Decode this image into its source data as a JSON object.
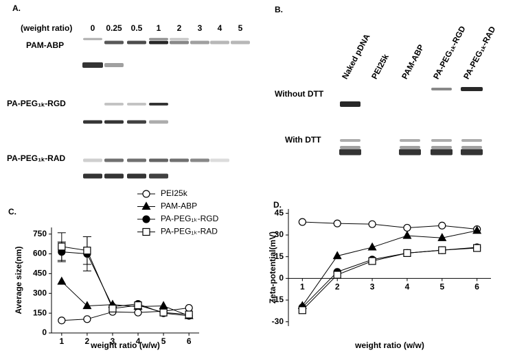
{
  "panels": {
    "A": {
      "label": "A.",
      "ratio_title": "(weight ratio)",
      "ratios": [
        "0",
        "0.25",
        "0.5",
        "1",
        "2",
        "3",
        "4",
        "5"
      ],
      "rows": [
        "PAM-ABP",
        "PA-PEG₁ₖ-RGD",
        "PA-PEG₁ₖ-RAD"
      ]
    },
    "B": {
      "label": "B.",
      "lanes": [
        "Naked pDNA",
        "PEI25k",
        "PAM-ABP",
        "PA-PEG₁ₖ-RGD",
        "PA-PEG₁ₖ-RAD"
      ],
      "rows": [
        "Without DTT",
        "With DTT"
      ]
    }
  },
  "chart_data": [
    {
      "type": "line",
      "label": "C.",
      "y_label": "Average size(nm)",
      "x_label": "weight ratio (w/w)",
      "x": [
        1,
        2,
        3,
        4,
        5,
        6
      ],
      "xlim": [
        0.6,
        6.4
      ],
      "xticks": [
        1,
        2,
        3,
        4,
        5,
        6
      ],
      "ylim": [
        0,
        800
      ],
      "yticks": [
        0,
        150,
        300,
        450,
        600,
        750
      ],
      "grid": false,
      "series": [
        {
          "name": "PEI25k",
          "color": "#000000",
          "marker": "open-circle",
          "values": [
            95,
            105,
            160,
            155,
            165,
            190
          ]
        },
        {
          "name": "PAM-ABP",
          "color": "#000000",
          "marker": "triangle",
          "values": [
            390,
            205,
            215,
            200,
            205,
            130
          ]
        },
        {
          "name": "PA-PEG₁ₖ-RGD",
          "color": "#000000",
          "marker": "filled-circle",
          "values": [
            615,
            600,
            200,
            220,
            150,
            130
          ],
          "errors": [
            75,
            130,
            null,
            null,
            null,
            null
          ]
        },
        {
          "name": "PA-PEG₁ₖ-RAD",
          "color": "#000000",
          "marker": "open-square",
          "values": [
            655,
            625,
            185,
            210,
            155,
            140
          ],
          "errors": [
            105,
            105,
            null,
            null,
            null,
            null
          ]
        }
      ]
    },
    {
      "type": "line",
      "label": "D.",
      "y_label": "Zeta-potential(mV)",
      "x_label": "weight ratio (w/w)",
      "x": [
        1,
        2,
        3,
        4,
        5,
        6
      ],
      "xlim": [
        0.6,
        6.4
      ],
      "xticks": [
        1,
        2,
        3,
        4,
        5,
        6
      ],
      "ylim": [
        -33,
        48
      ],
      "yticks": [
        -30,
        -15,
        0,
        15,
        30,
        45
      ],
      "grid": false,
      "series": [
        {
          "name": "PEI25k",
          "color": "#000000",
          "marker": "open-circle",
          "values": [
            39,
            38,
            37.5,
            35,
            36.5,
            34
          ]
        },
        {
          "name": "PAM-ABP",
          "color": "#000000",
          "marker": "triangle",
          "values": [
            -19,
            15.5,
            21.5,
            29.5,
            28,
            33
          ]
        },
        {
          "name": "PA-PEG₁ₖ-RGD",
          "color": "#000000",
          "marker": "filled-circle",
          "values": [
            -20,
            4.5,
            13,
            17.5,
            19.5,
            21.5
          ]
        },
        {
          "name": "PA-PEG₁ₖ-RAD",
          "color": "#000000",
          "marker": "open-square",
          "values": [
            -22,
            2.5,
            12,
            17.5,
            19.5,
            21
          ]
        }
      ]
    }
  ]
}
